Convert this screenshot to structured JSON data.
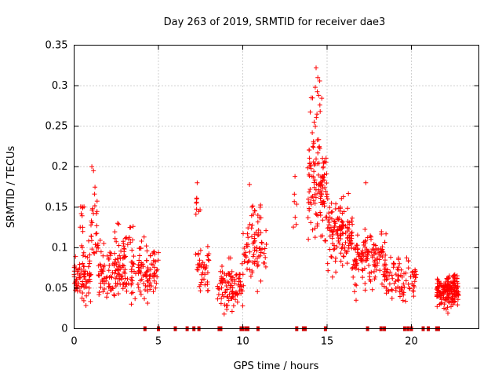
{
  "chart_data": {
    "type": "scatter",
    "title": "Day 263 of 2019, SRMTID for receiver dae3",
    "xlabel": "GPS time / hours",
    "ylabel": "SRMTID / TECUs",
    "xlim": [
      0,
      24
    ],
    "ylim": [
      0,
      0.35
    ],
    "grid": true,
    "x_ticks": [
      0,
      5,
      10,
      15,
      20
    ],
    "x_tick_labels": [
      "0",
      "5",
      "10",
      "15",
      "20"
    ],
    "y_ticks": [
      0,
      0.05,
      0.1,
      0.15,
      0.2,
      0.25,
      0.3,
      0.35
    ],
    "y_tick_labels": [
      "0",
      "0.05",
      "0.1",
      "0.15",
      "0.2",
      "0.25",
      "0.3",
      "0.35"
    ],
    "marker": "+",
    "color": "#ff0000",
    "clusters": [
      {
        "x": [
          0.0,
          1.0
        ],
        "y_center": 0.065,
        "y_spread": 0.03,
        "count": 80
      },
      {
        "x": [
          0.3,
          0.7
        ],
        "y_center": 0.14,
        "y_spread": 0.025,
        "count": 10
      },
      {
        "x": [
          1.0,
          1.4
        ],
        "y_center": 0.13,
        "y_spread": 0.04,
        "count": 25
      },
      {
        "x": [
          1.4,
          4.0
        ],
        "y_center": 0.07,
        "y_spread": 0.03,
        "count": 160
      },
      {
        "x": [
          2.3,
          4.3
        ],
        "y_center": 0.11,
        "y_spread": 0.02,
        "count": 25
      },
      {
        "x": [
          4.0,
          5.0
        ],
        "y_center": 0.07,
        "y_spread": 0.03,
        "count": 60
      },
      {
        "x": [
          7.2,
          8.0
        ],
        "y_center": 0.075,
        "y_spread": 0.03,
        "count": 40
      },
      {
        "x": [
          7.2,
          7.5
        ],
        "y_center": 0.15,
        "y_spread": 0.025,
        "count": 8
      },
      {
        "x": [
          8.5,
          10.0
        ],
        "y_center": 0.05,
        "y_spread": 0.025,
        "count": 100
      },
      {
        "x": [
          10.0,
          11.4
        ],
        "y_center": 0.09,
        "y_spread": 0.03,
        "count": 70
      },
      {
        "x": [
          10.2,
          11.2
        ],
        "y_center": 0.13,
        "y_spread": 0.02,
        "count": 15
      },
      {
        "x": [
          13.0,
          13.2
        ],
        "y_center": 0.14,
        "y_spread": 0.04,
        "count": 6
      },
      {
        "x": [
          13.8,
          15.0
        ],
        "y_center": 0.17,
        "y_spread": 0.05,
        "count": 110
      },
      {
        "x": [
          14.0,
          14.7
        ],
        "y_center": 0.25,
        "y_spread": 0.05,
        "count": 20
      },
      {
        "x": [
          15.0,
          16.5
        ],
        "y_center": 0.12,
        "y_spread": 0.035,
        "count": 130
      },
      {
        "x": [
          16.5,
          18.5
        ],
        "y_center": 0.085,
        "y_spread": 0.03,
        "count": 140
      },
      {
        "x": [
          18.5,
          19.5
        ],
        "y_center": 0.065,
        "y_spread": 0.025,
        "count": 50
      },
      {
        "x": [
          19.5,
          20.3
        ],
        "y_center": 0.06,
        "y_spread": 0.025,
        "count": 35
      },
      {
        "x": [
          21.5,
          22.8
        ],
        "y_center": 0.048,
        "y_spread": 0.016,
        "count": 170
      }
    ],
    "peaks": [
      {
        "x": 14.35,
        "y": 0.322
      },
      {
        "x": 14.45,
        "y": 0.31
      },
      {
        "x": 14.3,
        "y": 0.298
      },
      {
        "x": 14.5,
        "y": 0.288
      },
      {
        "x": 14.4,
        "y": 0.265
      },
      {
        "x": 1.05,
        "y": 0.2
      },
      {
        "x": 1.15,
        "y": 0.195
      },
      {
        "x": 7.3,
        "y": 0.18
      },
      {
        "x": 10.4,
        "y": 0.178
      },
      {
        "x": 13.1,
        "y": 0.188
      },
      {
        "x": 17.3,
        "y": 0.18
      }
    ],
    "zero_marks": [
      4.2,
      5.0,
      6.0,
      6.7,
      7.1,
      7.4,
      8.6,
      8.7,
      9.9,
      10.0,
      10.2,
      10.3,
      10.9,
      13.2,
      13.6,
      13.7,
      14.9,
      17.4,
      18.2,
      18.4,
      19.6,
      19.8,
      20.0,
      20.7,
      21.0,
      21.5,
      21.6
    ]
  }
}
